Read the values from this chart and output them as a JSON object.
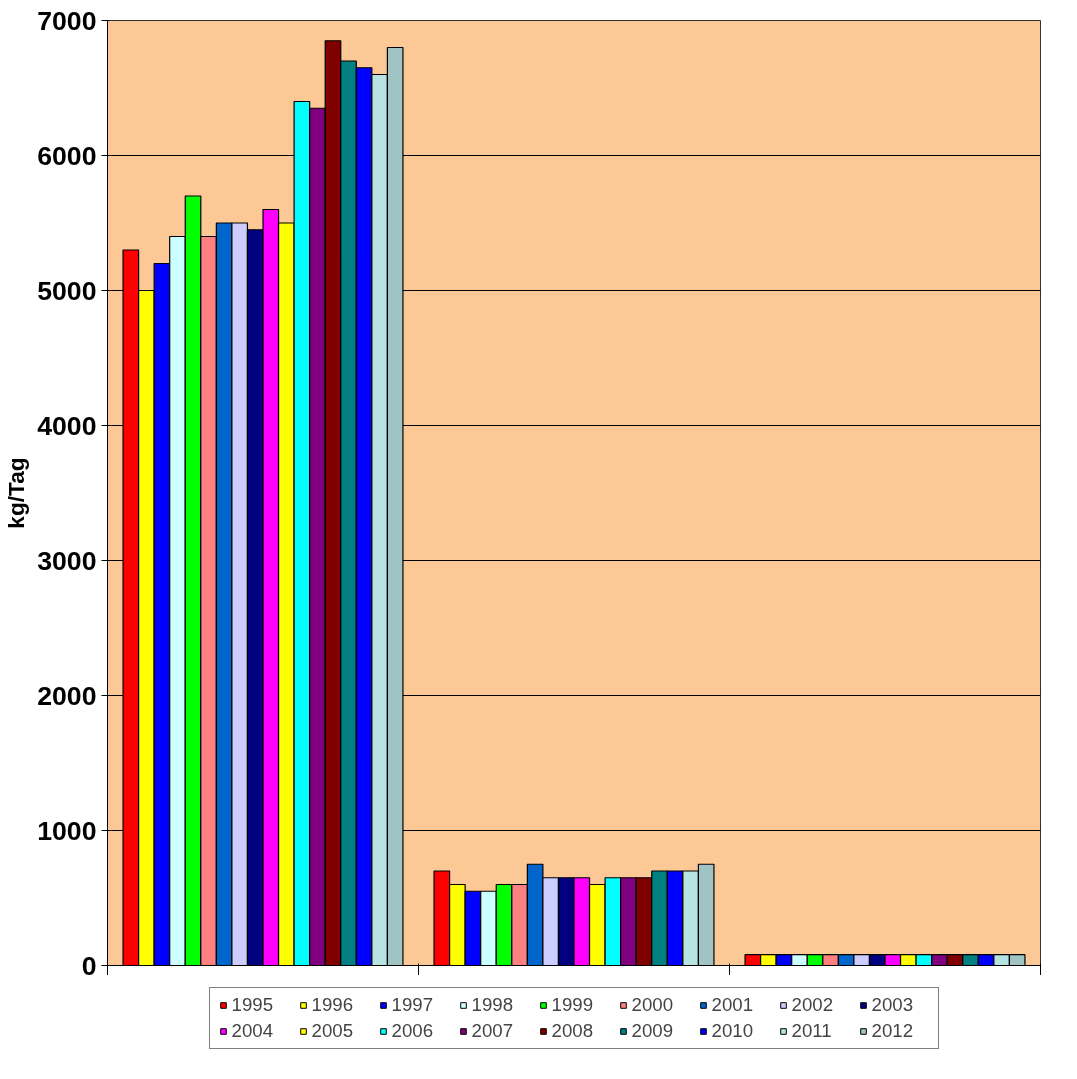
{
  "chart_data": {
    "type": "bar",
    "ylabel": "kg/Tag",
    "categories": [
      null,
      null,
      null
    ],
    "ylim": [
      0,
      7000
    ],
    "yticks": [
      0,
      1000,
      2000,
      3000,
      4000,
      5000,
      6000,
      7000
    ],
    "grid": "y",
    "legend": "bottom",
    "series": [
      {
        "name": "1995",
        "color": "#ff0000",
        "values": [
          5300,
          700,
          80
        ]
      },
      {
        "name": "1996",
        "color": "#ffff00",
        "values": [
          5000,
          600,
          80
        ]
      },
      {
        "name": "1997",
        "color": "#0000ff",
        "values": [
          5200,
          550,
          80
        ]
      },
      {
        "name": "1998",
        "color": "#ccffff",
        "values": [
          5400,
          550,
          80
        ]
      },
      {
        "name": "1999",
        "color": "#00ff00",
        "values": [
          5700,
          600,
          80
        ]
      },
      {
        "name": "2000",
        "color": "#ff8080",
        "values": [
          5400,
          600,
          80
        ]
      },
      {
        "name": "2001",
        "color": "#0066cc",
        "values": [
          5500,
          750,
          80
        ]
      },
      {
        "name": "2002",
        "color": "#ccccff",
        "values": [
          5500,
          650,
          80
        ]
      },
      {
        "name": "2003",
        "color": "#000080",
        "values": [
          5450,
          650,
          80
        ]
      },
      {
        "name": "2004",
        "color": "#ff00ff",
        "values": [
          5600,
          650,
          80
        ]
      },
      {
        "name": "2005",
        "color": "#ffff00",
        "values": [
          5500,
          600,
          80
        ]
      },
      {
        "name": "2006",
        "color": "#00ffff",
        "values": [
          6400,
          650,
          80
        ]
      },
      {
        "name": "2007",
        "color": "#800080",
        "values": [
          6350,
          650,
          80
        ]
      },
      {
        "name": "2008",
        "color": "#800000",
        "values": [
          6850,
          650,
          80
        ]
      },
      {
        "name": "2009",
        "color": "#008080",
        "values": [
          6700,
          700,
          80
        ]
      },
      {
        "name": "2010",
        "color": "#0000ff",
        "values": [
          6650,
          700,
          80
        ]
      },
      {
        "name": "2011",
        "color": "#b8e3e3",
        "values": [
          6600,
          700,
          80
        ]
      },
      {
        "name": "2012",
        "color": "#a0c4c4",
        "values": [
          6800,
          750,
          80
        ]
      }
    ]
  }
}
